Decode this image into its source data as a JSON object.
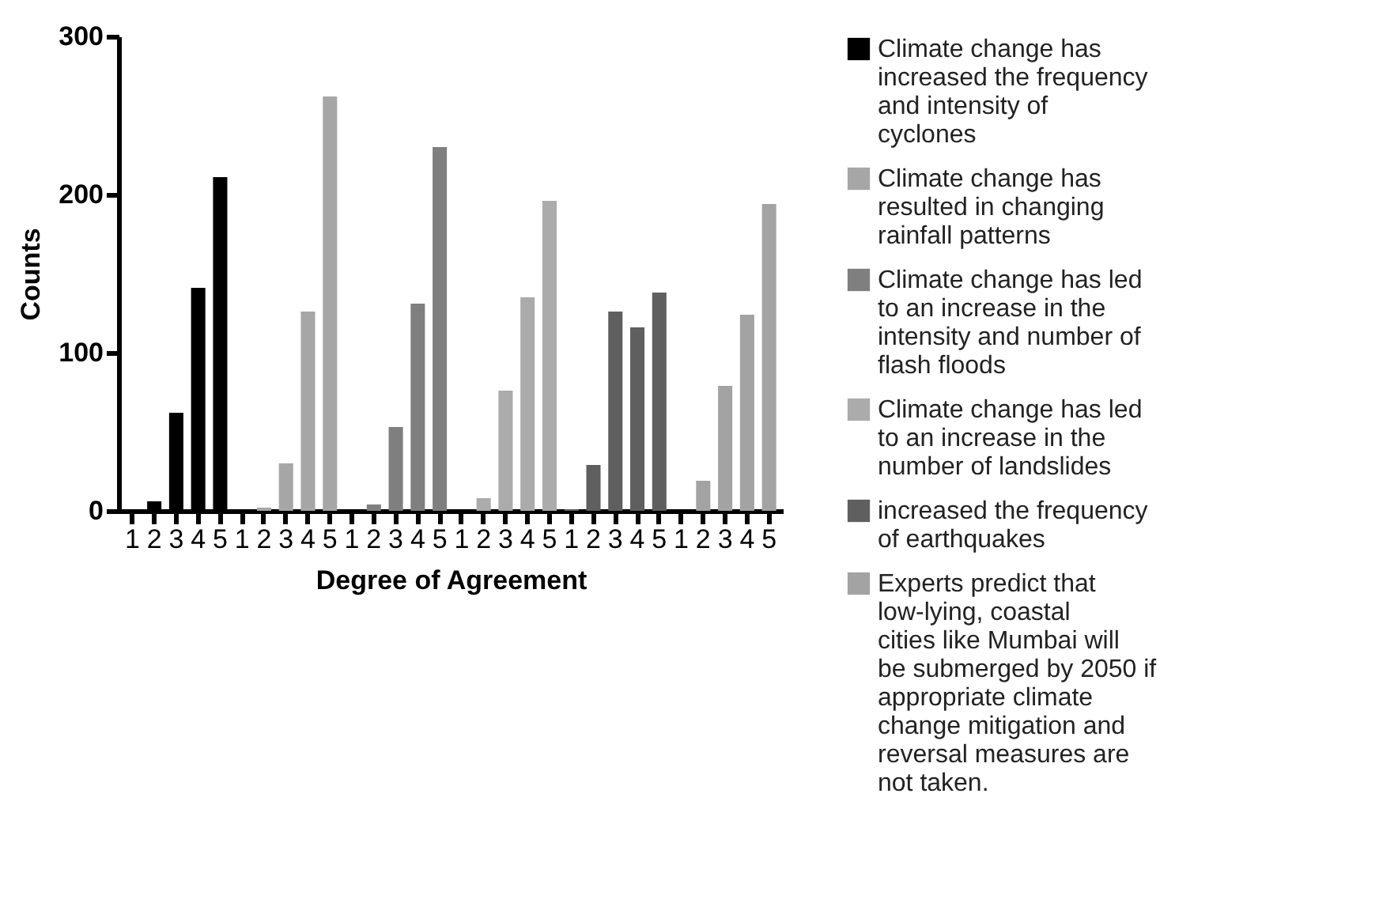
{
  "chart_data": {
    "type": "bar",
    "xlabel": "Degree of Agreement",
    "ylabel": "Counts",
    "categories": [
      "1",
      "2",
      "3",
      "4",
      "5",
      "1",
      "2",
      "3",
      "4",
      "5",
      "1",
      "2",
      "3",
      "4",
      "5",
      "1",
      "2",
      "3",
      "4",
      "5",
      "1",
      "2",
      "3",
      "4",
      "5",
      "1",
      "2",
      "3",
      "4",
      "5"
    ],
    "series": [
      {
        "name": "Climate change has increased the frequency and intensity of cyclones",
        "color": "#000000",
        "values": [
          0,
          6,
          62,
          141,
          211,
          null,
          null,
          null,
          null,
          null,
          null,
          null,
          null,
          null,
          null,
          null,
          null,
          null,
          null,
          null,
          null,
          null,
          null,
          null,
          null,
          null,
          null,
          null,
          null,
          null
        ]
      },
      {
        "name": "Climate change has resulted in changing rainfall patterns",
        "color": "#a6a6a6",
        "values": [
          null,
          null,
          null,
          null,
          null,
          0,
          2,
          30,
          126,
          262,
          null,
          null,
          null,
          null,
          null,
          null,
          null,
          null,
          null,
          null,
          null,
          null,
          null,
          null,
          null,
          null,
          null,
          null,
          null,
          null
        ]
      },
      {
        "name": "Climate change has led to an increase in the intensity and number of flash floods",
        "color": "#7f7f7f",
        "values": [
          null,
          null,
          null,
          null,
          null,
          null,
          null,
          null,
          null,
          null,
          0,
          4,
          53,
          131,
          230,
          null,
          null,
          null,
          null,
          null,
          null,
          null,
          null,
          null,
          null,
          null,
          null,
          null,
          null,
          null
        ]
      },
      {
        "name": "Climate change has led to an increase in the number of landslides",
        "color": "#ababab",
        "values": [
          null,
          null,
          null,
          null,
          null,
          null,
          null,
          null,
          null,
          null,
          null,
          null,
          null,
          null,
          null,
          0,
          8,
          76,
          135,
          196,
          null,
          null,
          null,
          null,
          null,
          null,
          null,
          null,
          null,
          null
        ]
      },
      {
        "name": "increased the frequency of earthquakes",
        "color": "#5f5f5f",
        "values": [
          null,
          null,
          null,
          null,
          null,
          null,
          null,
          null,
          null,
          null,
          null,
          null,
          null,
          null,
          null,
          null,
          null,
          null,
          null,
          null,
          1,
          29,
          126,
          116,
          138,
          null,
          null,
          null,
          null,
          null
        ]
      },
      {
        "name": "Experts predict that low-lying, coastal cities like Mumbai will be submerged by 2050 if appropriate climate change mitigation and reversal measures are not taken.",
        "color": "#a3a3a3",
        "values": [
          null,
          null,
          null,
          null,
          null,
          null,
          null,
          null,
          null,
          null,
          null,
          null,
          null,
          null,
          null,
          null,
          null,
          null,
          null,
          null,
          null,
          null,
          null,
          null,
          null,
          0,
          19,
          79,
          124,
          194
        ]
      }
    ],
    "ylim": [
      0,
      300
    ],
    "yticks": [
      0,
      100,
      200,
      300
    ],
    "grid": false,
    "legend": "right"
  }
}
